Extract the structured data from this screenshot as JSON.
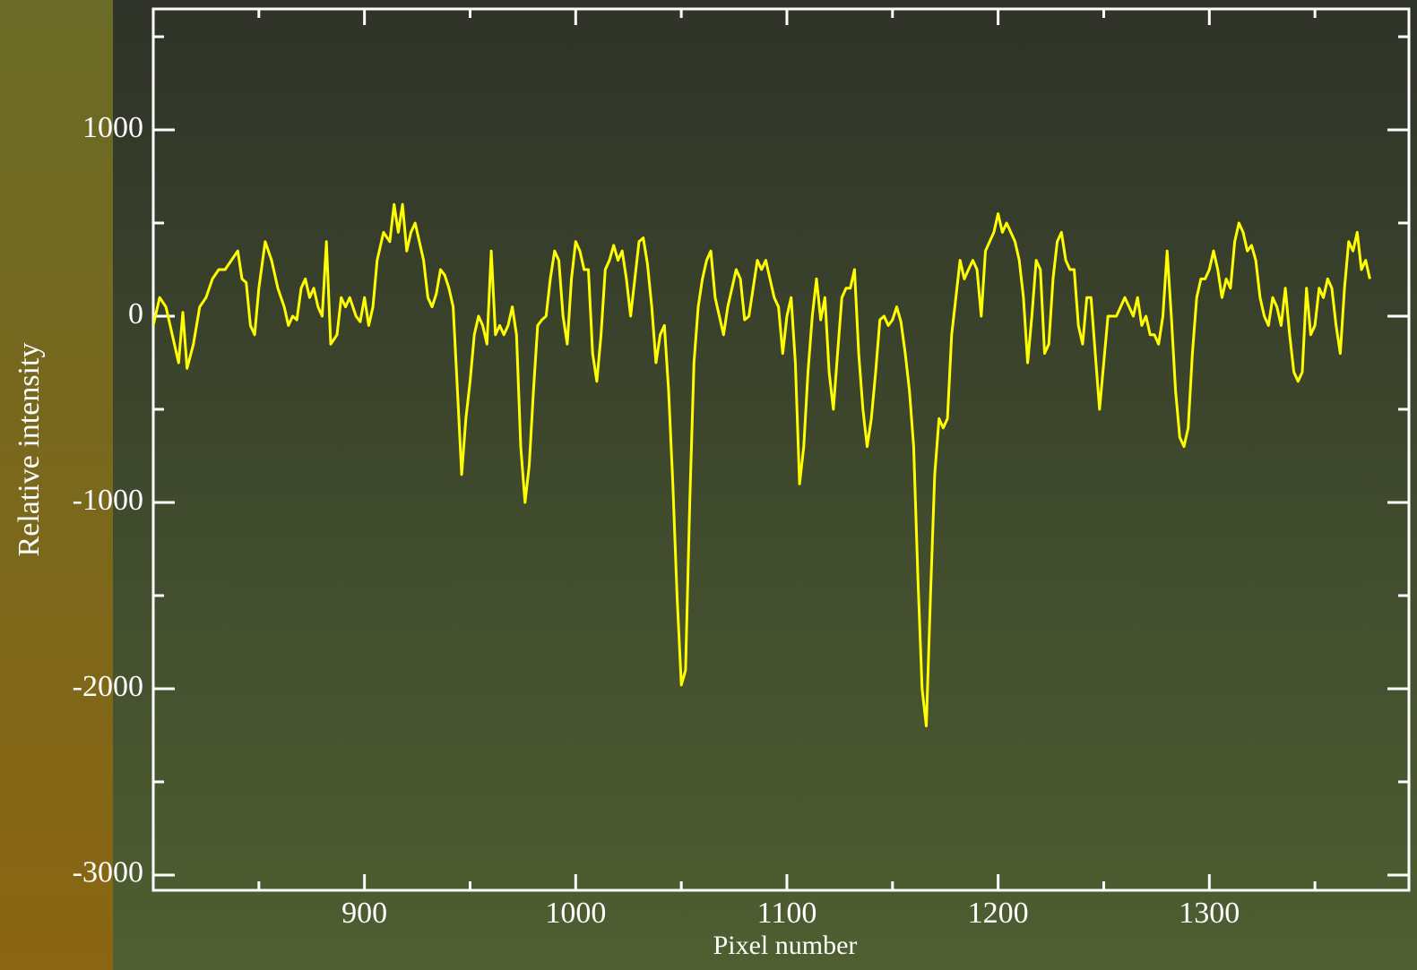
{
  "chart_data": {
    "type": "line",
    "x_label": "Pixel number",
    "y_label": "Relative intensity",
    "xlim": [
      800,
      1394.5
    ],
    "ylim": [
      -3082,
      1649
    ],
    "xticks": [
      900,
      1000,
      1100,
      1200,
      1300
    ],
    "yticks": [
      1000,
      0,
      -1000,
      -2000,
      -3000
    ],
    "xminor_ticks": [
      850,
      950,
      1050,
      1150,
      1250,
      1350
    ],
    "yminor_ticks": [
      1500,
      500,
      -500,
      -1500,
      -2500
    ],
    "series": [
      {
        "color": "#ffff00",
        "x": [
          800,
          803,
          806,
          809,
          812,
          814,
          816,
          819,
          822,
          825,
          828,
          831,
          834,
          837,
          840,
          842,
          844,
          846,
          848,
          850,
          853,
          856,
          859,
          862,
          864,
          866,
          868,
          870,
          872,
          874,
          876,
          878,
          880,
          882,
          884,
          887,
          889,
          891,
          893,
          896,
          898,
          900,
          902,
          904,
          906,
          909,
          912,
          914,
          916,
          918,
          920,
          922,
          924,
          926,
          928,
          930,
          932,
          934,
          936,
          938,
          940,
          942,
          944,
          946,
          948,
          950,
          952,
          954,
          956,
          958,
          960,
          962,
          964,
          966,
          968,
          970,
          972,
          974,
          976,
          978,
          980,
          982,
          984,
          986,
          988,
          990,
          992,
          994,
          996,
          998,
          1000,
          1002,
          1004,
          1006,
          1008,
          1010,
          1012,
          1014,
          1016,
          1018,
          1020,
          1022,
          1024,
          1026,
          1028,
          1030,
          1032,
          1034,
          1036,
          1038,
          1040,
          1042,
          1044,
          1046,
          1048,
          1050,
          1052,
          1054,
          1056,
          1058,
          1060,
          1062,
          1064,
          1066,
          1068,
          1070,
          1072,
          1074,
          1076,
          1078,
          1080,
          1082,
          1084,
          1086,
          1088,
          1090,
          1092,
          1094,
          1096,
          1098,
          1100,
          1102,
          1104,
          1106,
          1108,
          1110,
          1112,
          1114,
          1116,
          1118,
          1120,
          1122,
          1124,
          1126,
          1128,
          1130,
          1132,
          1134,
          1136,
          1138,
          1140,
          1142,
          1144,
          1146,
          1148,
          1150,
          1152,
          1154,
          1156,
          1158,
          1160,
          1162,
          1164,
          1166,
          1168,
          1170,
          1172,
          1174,
          1176,
          1178,
          1180,
          1182,
          1184,
          1186,
          1188,
          1190,
          1192,
          1194,
          1196,
          1198,
          1200,
          1202,
          1204,
          1206,
          1208,
          1210,
          1212,
          1214,
          1216,
          1218,
          1220,
          1222,
          1224,
          1226,
          1228,
          1230,
          1232,
          1234,
          1236,
          1238,
          1240,
          1242,
          1244,
          1246,
          1248,
          1250,
          1252,
          1254,
          1256,
          1258,
          1260,
          1262,
          1264,
          1266,
          1268,
          1270,
          1272,
          1274,
          1276,
          1278,
          1280,
          1282,
          1284,
          1286,
          1288,
          1290,
          1292,
          1294,
          1296,
          1298,
          1300,
          1302,
          1304,
          1306,
          1308,
          1310,
          1312,
          1314,
          1316,
          1318,
          1320,
          1322,
          1324,
          1326,
          1328,
          1330,
          1332,
          1334,
          1336,
          1338,
          1340,
          1342,
          1344,
          1346,
          1348,
          1350,
          1352,
          1354,
          1356,
          1358,
          1360,
          1362,
          1364,
          1366,
          1368,
          1370,
          1372,
          1374,
          1376
        ],
        "values": [
          -50,
          100,
          50,
          -100,
          -250,
          20,
          -280,
          -150,
          50,
          100,
          200,
          250,
          250,
          300,
          350,
          200,
          180,
          -50,
          -100,
          150,
          400,
          300,
          150,
          50,
          -50,
          0,
          -20,
          150,
          200,
          100,
          150,
          50,
          0,
          400,
          -150,
          -100,
          100,
          50,
          100,
          0,
          -30,
          100,
          -50,
          50,
          300,
          450,
          400,
          600,
          450,
          600,
          350,
          450,
          500,
          400,
          300,
          100,
          50,
          120,
          250,
          220,
          150,
          50,
          -400,
          -850,
          -550,
          -350,
          -100,
          0,
          -50,
          -150,
          350,
          -100,
          -50,
          -100,
          -50,
          50,
          -100,
          -700,
          -1000,
          -800,
          -400,
          -50,
          -20,
          0,
          200,
          350,
          300,
          0,
          -150,
          200,
          400,
          350,
          250,
          250,
          -200,
          -350,
          -100,
          250,
          300,
          380,
          300,
          350,
          200,
          0,
          200,
          400,
          420,
          280,
          50,
          -250,
          -100,
          -50,
          -400,
          -900,
          -1500,
          -1980,
          -1900,
          -1000,
          -250,
          50,
          200,
          300,
          350,
          100,
          0,
          -100,
          50,
          150,
          250,
          200,
          -20,
          0,
          150,
          300,
          250,
          300,
          200,
          100,
          50,
          -200,
          0,
          100,
          -250,
          -900,
          -700,
          -300,
          0,
          200,
          -20,
          100,
          -300,
          -500,
          -200,
          100,
          150,
          150,
          250,
          -200,
          -500,
          -700,
          -550,
          -300,
          -20,
          0,
          -50,
          -20,
          50,
          -30,
          -200,
          -400,
          -700,
          -1400,
          -2000,
          -2200,
          -1500,
          -850,
          -550,
          -600,
          -550,
          -100,
          100,
          300,
          200,
          250,
          300,
          250,
          0,
          350,
          400,
          450,
          550,
          450,
          500,
          450,
          400,
          300,
          100,
          -250,
          0,
          300,
          250,
          -200,
          -150,
          200,
          400,
          450,
          300,
          250,
          250,
          -50,
          -150,
          100,
          100,
          -200,
          -500,
          -250,
          0,
          0,
          0,
          50,
          100,
          50,
          0,
          100,
          -50,
          0,
          -100,
          -100,
          -150,
          0,
          350,
          0,
          -400,
          -650,
          -700,
          -600,
          -200,
          100,
          200,
          200,
          250,
          350,
          250,
          100,
          200,
          150,
          400,
          500,
          450,
          350,
          380,
          300,
          100,
          0,
          -50,
          100,
          50,
          -50,
          150,
          -100,
          -300,
          -350,
          -300,
          150,
          -100,
          -50,
          150,
          100,
          200,
          150,
          -50,
          -200,
          150,
          400,
          350,
          450,
          250,
          300,
          200
        ]
      }
    ]
  }
}
